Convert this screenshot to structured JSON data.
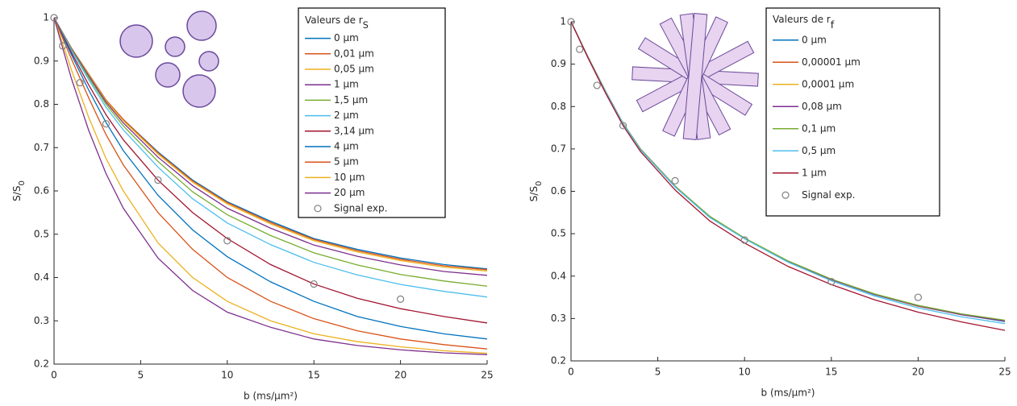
{
  "chart_data": [
    {
      "type": "line",
      "legend_title": "Valeurs de r",
      "legend_title_subscript": "S",
      "xlabel": "b (ms/µm²)",
      "ylabel": "S/S",
      "ylabel_subscript": "0",
      "xlim": [
        0,
        25
      ],
      "ylim": [
        0.2,
        1
      ],
      "xticks": [
        0,
        5,
        10,
        15,
        20,
        25
      ],
      "yticks": [
        0.2,
        0.3,
        0.4,
        0.5,
        0.6,
        0.7,
        0.8,
        0.9,
        1
      ],
      "x": [
        0,
        1,
        2,
        3,
        4,
        6,
        8,
        10,
        12.5,
        15,
        17.5,
        20,
        22.5,
        25
      ],
      "series": [
        {
          "name": "0 µm",
          "color": "#0072BD",
          "values": [
            1,
            0.93,
            0.87,
            0.81,
            0.765,
            0.69,
            0.625,
            0.575,
            0.53,
            0.49,
            0.465,
            0.445,
            0.43,
            0.42
          ]
        },
        {
          "name": "0,01 µm",
          "color": "#D95319",
          "values": [
            1,
            0.93,
            0.87,
            0.81,
            0.765,
            0.688,
            0.623,
            0.573,
            0.527,
            0.488,
            0.462,
            0.442,
            0.427,
            0.418
          ]
        },
        {
          "name": "0,05 µm",
          "color": "#EDB120",
          "values": [
            1,
            0.93,
            0.869,
            0.808,
            0.762,
            0.685,
            0.62,
            0.57,
            0.524,
            0.485,
            0.459,
            0.439,
            0.424,
            0.415
          ]
        },
        {
          "name": "1 µm",
          "color": "#7E2F8E",
          "values": [
            1,
            0.929,
            0.866,
            0.805,
            0.757,
            0.678,
            0.612,
            0.56,
            0.514,
            0.475,
            0.449,
            0.429,
            0.414,
            0.405
          ]
        },
        {
          "name": "1,5 µm",
          "color": "#77AC30",
          "values": [
            1,
            0.927,
            0.862,
            0.8,
            0.75,
            0.668,
            0.598,
            0.545,
            0.497,
            0.457,
            0.429,
            0.407,
            0.392,
            0.38
          ]
        },
        {
          "name": "2 µm",
          "color": "#4DBEEE",
          "values": [
            1,
            0.925,
            0.857,
            0.793,
            0.741,
            0.655,
            0.582,
            0.526,
            0.476,
            0.435,
            0.406,
            0.384,
            0.368,
            0.355
          ]
        },
        {
          "name": "3,14 µm",
          "color": "#A2142F",
          "values": [
            1,
            0.92,
            0.845,
            0.776,
            0.718,
            0.625,
            0.55,
            0.49,
            0.43,
            0.385,
            0.352,
            0.328,
            0.31,
            0.295
          ]
        },
        {
          "name": "4 µm",
          "color": "#0072BD",
          "values": [
            1,
            0.915,
            0.833,
            0.758,
            0.693,
            0.59,
            0.51,
            0.448,
            0.39,
            0.345,
            0.31,
            0.287,
            0.27,
            0.258
          ]
        },
        {
          "name": "5 µm",
          "color": "#D95319",
          "values": [
            1,
            0.905,
            0.815,
            0.73,
            0.66,
            0.55,
            0.465,
            0.4,
            0.345,
            0.305,
            0.277,
            0.258,
            0.245,
            0.235
          ]
        },
        {
          "name": "10 µm",
          "color": "#EDB120",
          "values": [
            1,
            0.88,
            0.77,
            0.675,
            0.6,
            0.48,
            0.4,
            0.345,
            0.3,
            0.27,
            0.252,
            0.24,
            0.231,
            0.225
          ]
        },
        {
          "name": "20 µm",
          "color": "#7E2F8E",
          "values": [
            1,
            0.86,
            0.74,
            0.64,
            0.56,
            0.445,
            0.37,
            0.32,
            0.285,
            0.258,
            0.243,
            0.233,
            0.226,
            0.222
          ]
        },
        {
          "name": "Signal exp.",
          "color": "#808080",
          "marker": "circle",
          "x": [
            0,
            0.5,
            1.5,
            3,
            6,
            10,
            15,
            20
          ],
          "values": [
            1,
            0.935,
            0.85,
            0.755,
            0.625,
            0.485,
            0.385,
            0.35
          ]
        }
      ]
    },
    {
      "type": "line",
      "legend_title": "Valeurs de r",
      "legend_title_subscript": "f",
      "xlabel": "b (ms/µm²)",
      "ylabel": "S/S",
      "ylabel_subscript": "0",
      "xlim": [
        0,
        25
      ],
      "ylim": [
        0.2,
        1
      ],
      "xticks": [
        0,
        5,
        10,
        15,
        20,
        25
      ],
      "yticks": [
        0.2,
        0.3,
        0.4,
        0.5,
        0.6,
        0.7,
        0.8,
        0.9,
        1
      ],
      "x": [
        0,
        1,
        2,
        3,
        4,
        6,
        8,
        10,
        12.5,
        15,
        17.5,
        20,
        22.5,
        25
      ],
      "series": [
        {
          "name": "0 µm",
          "color": "#0072BD",
          "values": [
            1,
            0.915,
            0.835,
            0.76,
            0.7,
            0.612,
            0.54,
            0.489,
            0.435,
            0.392,
            0.356,
            0.329,
            0.309,
            0.293
          ]
        },
        {
          "name": "0,00001 µm",
          "color": "#D95319",
          "values": [
            1,
            0.915,
            0.835,
            0.76,
            0.7,
            0.612,
            0.54,
            0.489,
            0.435,
            0.392,
            0.357,
            0.329,
            0.309,
            0.294
          ]
        },
        {
          "name": "0,0001 µm",
          "color": "#EDB120",
          "values": [
            1,
            0.915,
            0.835,
            0.76,
            0.7,
            0.612,
            0.54,
            0.489,
            0.435,
            0.392,
            0.357,
            0.33,
            0.31,
            0.295
          ]
        },
        {
          "name": "0,08 µm",
          "color": "#7E2F8E",
          "values": [
            1,
            0.915,
            0.835,
            0.76,
            0.7,
            0.612,
            0.54,
            0.489,
            0.435,
            0.392,
            0.357,
            0.33,
            0.309,
            0.294
          ]
        },
        {
          "name": "0,1 µm",
          "color": "#77AC30",
          "values": [
            1,
            0.915,
            0.835,
            0.76,
            0.7,
            0.612,
            0.541,
            0.49,
            0.436,
            0.393,
            0.358,
            0.331,
            0.311,
            0.296
          ]
        },
        {
          "name": "0,5 µm",
          "color": "#4DBEEE",
          "values": [
            1,
            0.914,
            0.834,
            0.759,
            0.698,
            0.61,
            0.538,
            0.488,
            0.433,
            0.389,
            0.353,
            0.325,
            0.304,
            0.288
          ]
        },
        {
          "name": "1 µm",
          "color": "#A2142F",
          "values": [
            1,
            0.913,
            0.831,
            0.755,
            0.694,
            0.603,
            0.53,
            0.478,
            0.423,
            0.38,
            0.344,
            0.315,
            0.292,
            0.272
          ]
        },
        {
          "name": "Signal exp.",
          "color": "#808080",
          "marker": "circle",
          "x": [
            0,
            0.5,
            1.5,
            3,
            6,
            10,
            15,
            20
          ],
          "values": [
            1,
            0.935,
            0.85,
            0.755,
            0.625,
            0.485,
            0.387,
            0.35
          ]
        }
      ]
    }
  ]
}
